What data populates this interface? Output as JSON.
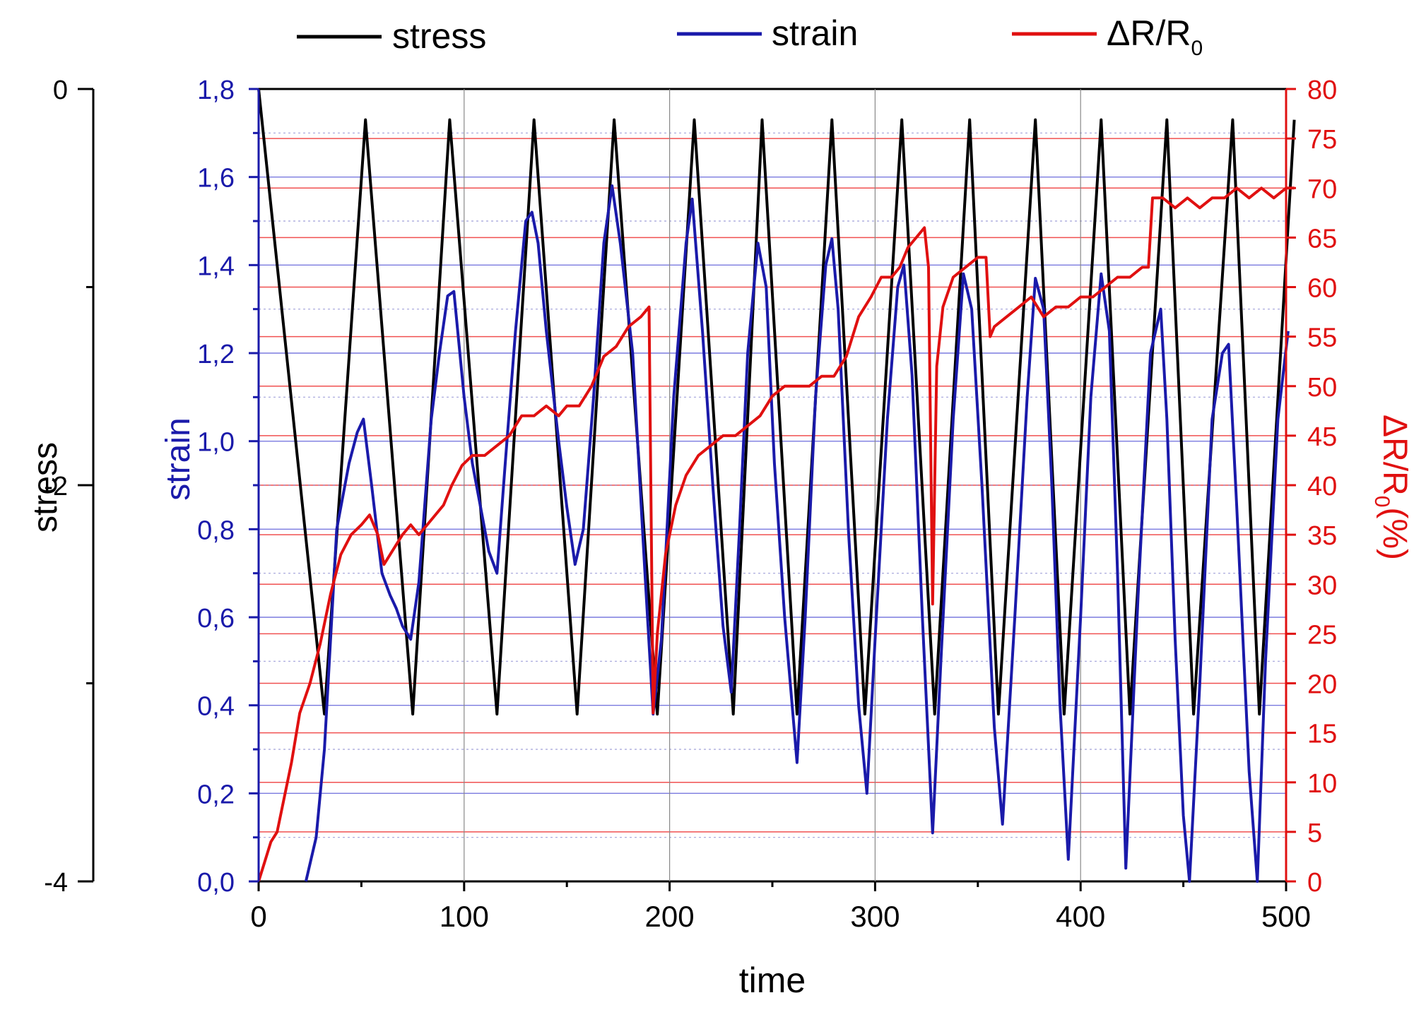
{
  "legend": {
    "stress": "stress",
    "strain": "strain",
    "resistance_main": "ΔR/R",
    "resistance_sub": "0"
  },
  "axes": {
    "x_label": "time",
    "stress_label": "stress",
    "strain_label": "strain",
    "resistance_label_main": "ΔR/R",
    "resistance_label_sub": "0",
    "resistance_label_suffix": "(%)"
  },
  "colors": {
    "stress": "#000000",
    "strain": "#1a1aaa",
    "resistance": "#e01010"
  },
  "chart_data": {
    "type": "line",
    "title": "",
    "xlabel": "time",
    "xlim": [
      0,
      500
    ],
    "x_ticks": [
      "0",
      "100",
      "200",
      "300",
      "400",
      "500"
    ],
    "grid": true,
    "legend_position": "top",
    "axes": {
      "stress": {
        "label": "stress",
        "side": "outer-left",
        "lim": [
          -4,
          0
        ],
        "tick_labels": [
          "0",
          "-2",
          "-4"
        ],
        "tick_values": [
          0,
          -2,
          -4
        ]
      },
      "strain": {
        "label": "strain",
        "side": "left",
        "lim": [
          0,
          1.8
        ],
        "tick_labels": [
          "0,0",
          "0,2",
          "0,4",
          "0,6",
          "0,8",
          "1,0",
          "1,2",
          "1,4",
          "1,6",
          "1,8"
        ],
        "tick_values": [
          0,
          0.2,
          0.4,
          0.6,
          0.8,
          1.0,
          1.2,
          1.4,
          1.6,
          1.8
        ]
      },
      "resistance": {
        "label": "ΔR/R0(%)",
        "side": "right",
        "lim": [
          0,
          80
        ],
        "tick_labels": [
          "0",
          "5",
          "10",
          "15",
          "20",
          "25",
          "30",
          "35",
          "40",
          "45",
          "50",
          "55",
          "60",
          "65",
          "70",
          "75",
          "80"
        ],
        "tick_values": [
          0,
          5,
          10,
          15,
          20,
          25,
          30,
          35,
          40,
          45,
          50,
          55,
          60,
          65,
          70,
          75,
          80
        ]
      }
    },
    "series": [
      {
        "name": "stress",
        "axis": "strain",
        "x": [
          0,
          32,
          52,
          75,
          93,
          116,
          134,
          155,
          173,
          194,
          212,
          231,
          245,
          262,
          279,
          295,
          313,
          329,
          346,
          360,
          378,
          392,
          410,
          424,
          442,
          455,
          474,
          487,
          504
        ],
        "values": [
          1.8,
          0.38,
          1.73,
          0.38,
          1.73,
          0.38,
          1.73,
          0.38,
          1.73,
          0.38,
          1.73,
          0.38,
          1.73,
          0.38,
          1.73,
          0.38,
          1.73,
          0.38,
          1.73,
          0.38,
          1.73,
          0.38,
          1.73,
          0.38,
          1.73,
          0.38,
          1.73,
          0.38,
          1.73
        ]
      },
      {
        "name": "strain",
        "axis": "strain",
        "x": [
          23,
          28,
          32,
          38,
          44,
          48,
          51,
          55,
          60,
          64,
          67,
          70,
          74,
          78,
          84,
          88,
          92,
          95,
          100,
          104,
          108,
          112,
          116,
          120,
          125,
          130,
          133,
          136,
          140,
          146,
          150,
          154,
          158,
          163,
          168,
          172,
          176,
          182,
          188,
          192,
          196,
          202,
          208,
          211,
          216,
          221,
          226,
          230,
          234,
          238,
          243,
          247,
          251,
          256,
          262,
          266,
          271,
          276,
          279,
          282,
          287,
          292,
          296,
          300,
          306,
          311,
          314,
          318,
          323,
          328,
          332,
          338,
          343,
          347,
          352,
          358,
          362,
          368,
          374,
          378,
          382,
          386,
          390,
          394,
          400,
          405,
          410,
          414,
          418,
          422,
          428,
          434,
          439,
          442,
          446,
          450,
          453,
          458,
          464,
          469,
          472,
          476,
          482,
          486,
          490,
          496,
          501
        ],
        "values": [
          0.0,
          0.1,
          0.3,
          0.8,
          0.95,
          1.02,
          1.05,
          0.9,
          0.7,
          0.65,
          0.62,
          0.58,
          0.55,
          0.68,
          1.05,
          1.2,
          1.33,
          1.34,
          1.1,
          0.95,
          0.85,
          0.75,
          0.7,
          0.95,
          1.25,
          1.5,
          1.52,
          1.45,
          1.25,
          1.0,
          0.85,
          0.72,
          0.8,
          1.1,
          1.45,
          1.58,
          1.45,
          1.2,
          0.7,
          0.38,
          0.55,
          1.1,
          1.45,
          1.55,
          1.25,
          0.9,
          0.58,
          0.43,
          0.8,
          1.2,
          1.45,
          1.35,
          0.95,
          0.6,
          0.27,
          0.6,
          1.1,
          1.4,
          1.46,
          1.3,
          0.8,
          0.4,
          0.2,
          0.55,
          1.05,
          1.35,
          1.4,
          1.15,
          0.6,
          0.11,
          0.5,
          1.05,
          1.38,
          1.3,
          0.9,
          0.35,
          0.13,
          0.6,
          1.1,
          1.37,
          1.3,
          0.9,
          0.4,
          0.05,
          0.6,
          1.1,
          1.38,
          1.25,
          0.7,
          0.03,
          0.65,
          1.2,
          1.3,
          1.05,
          0.55,
          0.15,
          0.0,
          0.45,
          1.05,
          1.2,
          1.22,
          0.85,
          0.25,
          0.0,
          0.5,
          1.05,
          1.25
        ]
      },
      {
        "name": "ΔR/R0",
        "axis": "resistance",
        "x": [
          0,
          3,
          6,
          9,
          12,
          16,
          20,
          25,
          30,
          35,
          40,
          45,
          50,
          54,
          58,
          61,
          64,
          67,
          70,
          74,
          78,
          82,
          86,
          90,
          94,
          99,
          104,
          110,
          116,
          122,
          128,
          134,
          140,
          146,
          150,
          156,
          162,
          168,
          174,
          180,
          186,
          190,
          192,
          194,
          198,
          203,
          208,
          214,
          220,
          226,
          232,
          238,
          244,
          250,
          256,
          262,
          268,
          274,
          280,
          286,
          292,
          298,
          303,
          308,
          312,
          316,
          320,
          324,
          326,
          328,
          330,
          333,
          338,
          344,
          350,
          354,
          356,
          358,
          364,
          370,
          376,
          382,
          388,
          394,
          400,
          406,
          412,
          418,
          424,
          430,
          433,
          435,
          440,
          446,
          452,
          458,
          464,
          470,
          476,
          482,
          488,
          494,
          500,
          504
        ],
        "values": [
          0,
          2,
          4,
          5,
          8,
          12,
          17,
          20,
          24,
          29,
          33,
          35,
          36,
          37,
          35,
          32,
          33,
          34,
          35,
          36,
          35,
          36,
          37,
          38,
          40,
          42,
          43,
          43,
          44,
          45,
          47,
          47,
          48,
          47,
          48,
          48,
          50,
          53,
          54,
          56,
          57,
          58,
          17,
          25,
          33,
          38,
          41,
          43,
          44,
          45,
          45,
          46,
          47,
          49,
          50,
          50,
          50,
          51,
          51,
          53,
          57,
          59,
          61,
          61,
          62,
          64,
          65,
          66,
          62,
          28,
          52,
          58,
          61,
          62,
          63,
          63,
          55,
          56,
          57,
          58,
          59,
          57,
          58,
          58,
          59,
          59,
          60,
          61,
          61,
          62,
          62,
          69,
          69,
          68,
          69,
          68,
          69,
          69,
          70,
          69,
          70,
          69,
          70,
          70
        ]
      }
    ]
  }
}
